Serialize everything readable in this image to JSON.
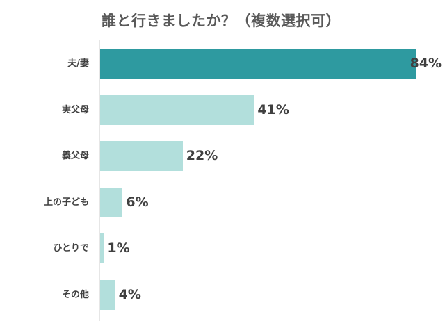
{
  "chart_data": {
    "type": "bar",
    "orientation": "horizontal",
    "title": "誰と行きましたか？（複数選択可）",
    "categories": [
      "夫/妻",
      "実父母",
      "義父母",
      "上の子ども",
      "ひとりで",
      "その他"
    ],
    "values": [
      84,
      41,
      22,
      6,
      1,
      4
    ],
    "value_labels": [
      "84%",
      "41%",
      "22%",
      "6%",
      "1%",
      "4%"
    ],
    "unit": "%",
    "xlabel": "",
    "ylabel": "",
    "xlim": [
      0,
      100
    ],
    "grid": false,
    "legend": null,
    "colors": {
      "highlight": "#2e9aa0",
      "default": "#b2dfdc"
    },
    "highlight_index": 0
  }
}
